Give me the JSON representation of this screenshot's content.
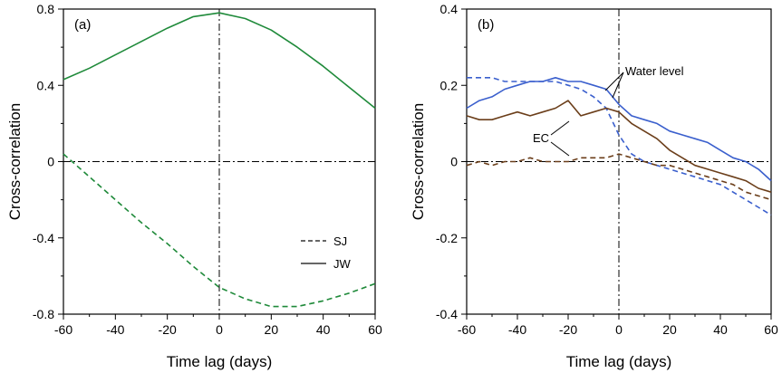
{
  "chart_data": [
    {
      "type": "line",
      "panel_label": "(a)",
      "xlabel": "Time lag (days)",
      "ylabel": "Cross-correlation",
      "xlim": [
        -60,
        60
      ],
      "ylim": [
        -0.8,
        0.8
      ],
      "xticks": [
        -60,
        -40,
        -20,
        0,
        20,
        40,
        60
      ],
      "xtick_labels": [
        "-60",
        "-40",
        "-20",
        "0",
        "20",
        "40",
        "60"
      ],
      "yticks": [
        -0.8,
        -0.4,
        0,
        0.4,
        0.8
      ],
      "ytick_labels": [
        "-0.8",
        "-0.4",
        "0",
        "0.4",
        "0.8"
      ],
      "reference_lines": {
        "x": 0,
        "y": 0
      },
      "legend": {
        "placement": "lower-right",
        "entries": [
          {
            "label": "SJ",
            "style": "dashed"
          },
          {
            "label": "JW",
            "style": "solid"
          }
        ]
      },
      "x": [
        -60,
        -50,
        -40,
        -30,
        -20,
        -10,
        0,
        10,
        20,
        30,
        40,
        50,
        60
      ],
      "series": [
        {
          "name": "JW",
          "style": "solid",
          "color": "#1f8a3a",
          "values": [
            0.43,
            0.49,
            0.56,
            0.63,
            0.7,
            0.76,
            0.78,
            0.75,
            0.69,
            0.6,
            0.5,
            0.39,
            0.28
          ]
        },
        {
          "name": "SJ",
          "style": "dashed",
          "color": "#1f8a3a",
          "values": [
            0.04,
            -0.08,
            -0.2,
            -0.32,
            -0.43,
            -0.55,
            -0.66,
            -0.72,
            -0.76,
            -0.76,
            -0.73,
            -0.69,
            -0.64
          ]
        }
      ]
    },
    {
      "type": "line",
      "panel_label": "(b)",
      "xlabel": "Time lag (days)",
      "ylabel": "Cross-correlation",
      "xlim": [
        -60,
        60
      ],
      "ylim": [
        -0.4,
        0.4
      ],
      "xticks": [
        -60,
        -40,
        -20,
        0,
        20,
        40,
        60
      ],
      "xtick_labels": [
        "-60",
        "-40",
        "-20",
        "0",
        "20",
        "40",
        "60"
      ],
      "yticks": [
        -0.4,
        -0.2,
        0,
        0.2,
        0.4
      ],
      "ytick_labels": [
        "-0.4",
        "-0.2",
        "0",
        "0.2",
        "0.4"
      ],
      "reference_lines": {
        "x": 0,
        "y": 0
      },
      "annotations": [
        {
          "text": "Water level",
          "targets": [
            "Water level JW",
            "Water level SJ"
          ]
        },
        {
          "text": "EC",
          "targets": [
            "EC JW",
            "EC SJ"
          ]
        }
      ],
      "x": [
        -60,
        -55,
        -50,
        -45,
        -40,
        -35,
        -30,
        -25,
        -20,
        -15,
        -10,
        -5,
        0,
        5,
        10,
        15,
        20,
        25,
        30,
        35,
        40,
        45,
        50,
        55,
        60
      ],
      "series": [
        {
          "name": "Water level JW",
          "style": "solid",
          "color": "#3a5fcd",
          "values": [
            0.14,
            0.16,
            0.17,
            0.19,
            0.2,
            0.21,
            0.21,
            0.22,
            0.21,
            0.21,
            0.2,
            0.19,
            0.15,
            0.12,
            0.11,
            0.1,
            0.08,
            0.07,
            0.06,
            0.05,
            0.03,
            0.01,
            0.0,
            -0.02,
            -0.05
          ]
        },
        {
          "name": "Water level SJ",
          "style": "dashed",
          "color": "#3a5fcd",
          "values": [
            0.22,
            0.22,
            0.22,
            0.21,
            0.21,
            0.21,
            0.21,
            0.21,
            0.2,
            0.19,
            0.17,
            0.14,
            0.07,
            0.02,
            0.0,
            -0.01,
            -0.02,
            -0.03,
            -0.04,
            -0.05,
            -0.06,
            -0.08,
            -0.1,
            -0.12,
            -0.14
          ]
        },
        {
          "name": "EC JW",
          "style": "solid",
          "color": "#6b3e1a",
          "values": [
            0.12,
            0.11,
            0.11,
            0.12,
            0.13,
            0.12,
            0.13,
            0.14,
            0.16,
            0.12,
            0.13,
            0.14,
            0.13,
            0.1,
            0.08,
            0.06,
            0.03,
            0.01,
            -0.01,
            -0.02,
            -0.03,
            -0.04,
            -0.05,
            -0.07,
            -0.08
          ]
        },
        {
          "name": "EC SJ",
          "style": "dashed",
          "color": "#6b3e1a",
          "values": [
            -0.01,
            0.0,
            -0.01,
            0.0,
            0.0,
            0.01,
            0.0,
            0.0,
            0.0,
            0.01,
            0.01,
            0.01,
            0.02,
            0.01,
            0.0,
            -0.01,
            -0.01,
            -0.02,
            -0.03,
            -0.04,
            -0.05,
            -0.06,
            -0.08,
            -0.09,
            -0.1
          ]
        }
      ]
    }
  ]
}
